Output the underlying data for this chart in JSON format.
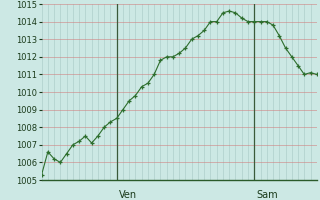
{
  "background_color": "#cce8e4",
  "line_color": "#2d6e2d",
  "marker_color": "#2d6e2d",
  "ylim": [
    1005,
    1015
  ],
  "x_values": [
    0,
    1,
    2,
    3,
    4,
    5,
    6,
    7,
    8,
    9,
    10,
    11,
    12,
    13,
    14,
    15,
    16,
    17,
    18,
    19,
    20,
    21,
    22,
    23,
    24,
    25,
    26,
    27,
    28,
    29,
    30,
    31,
    32,
    33,
    34,
    35,
    36,
    37,
    38,
    39,
    40,
    41,
    42,
    43,
    44
  ],
  "y_values": [
    1005.3,
    1006.6,
    1006.2,
    1006.0,
    1006.5,
    1007.0,
    1007.2,
    1007.5,
    1007.1,
    1007.5,
    1008.0,
    1008.3,
    1008.5,
    1009.0,
    1009.5,
    1009.8,
    1010.3,
    1010.5,
    1011.0,
    1011.8,
    1012.0,
    1012.0,
    1012.2,
    1012.5,
    1013.0,
    1013.2,
    1013.5,
    1014.0,
    1014.0,
    1014.5,
    1014.6,
    1014.5,
    1014.2,
    1014.0,
    1014.0,
    1014.0,
    1014.0,
    1013.8,
    1013.2,
    1012.5,
    1012.0,
    1011.5,
    1011.0,
    1011.1,
    1011.0
  ],
  "vline_positions": [
    12,
    34
  ],
  "vline_labels": [
    "Ven",
    "Sam"
  ],
  "grid_h_color": "#d08080",
  "grid_v_color": "#a8c8c4",
  "ytick_fontsize": 6,
  "label_fontsize": 7
}
